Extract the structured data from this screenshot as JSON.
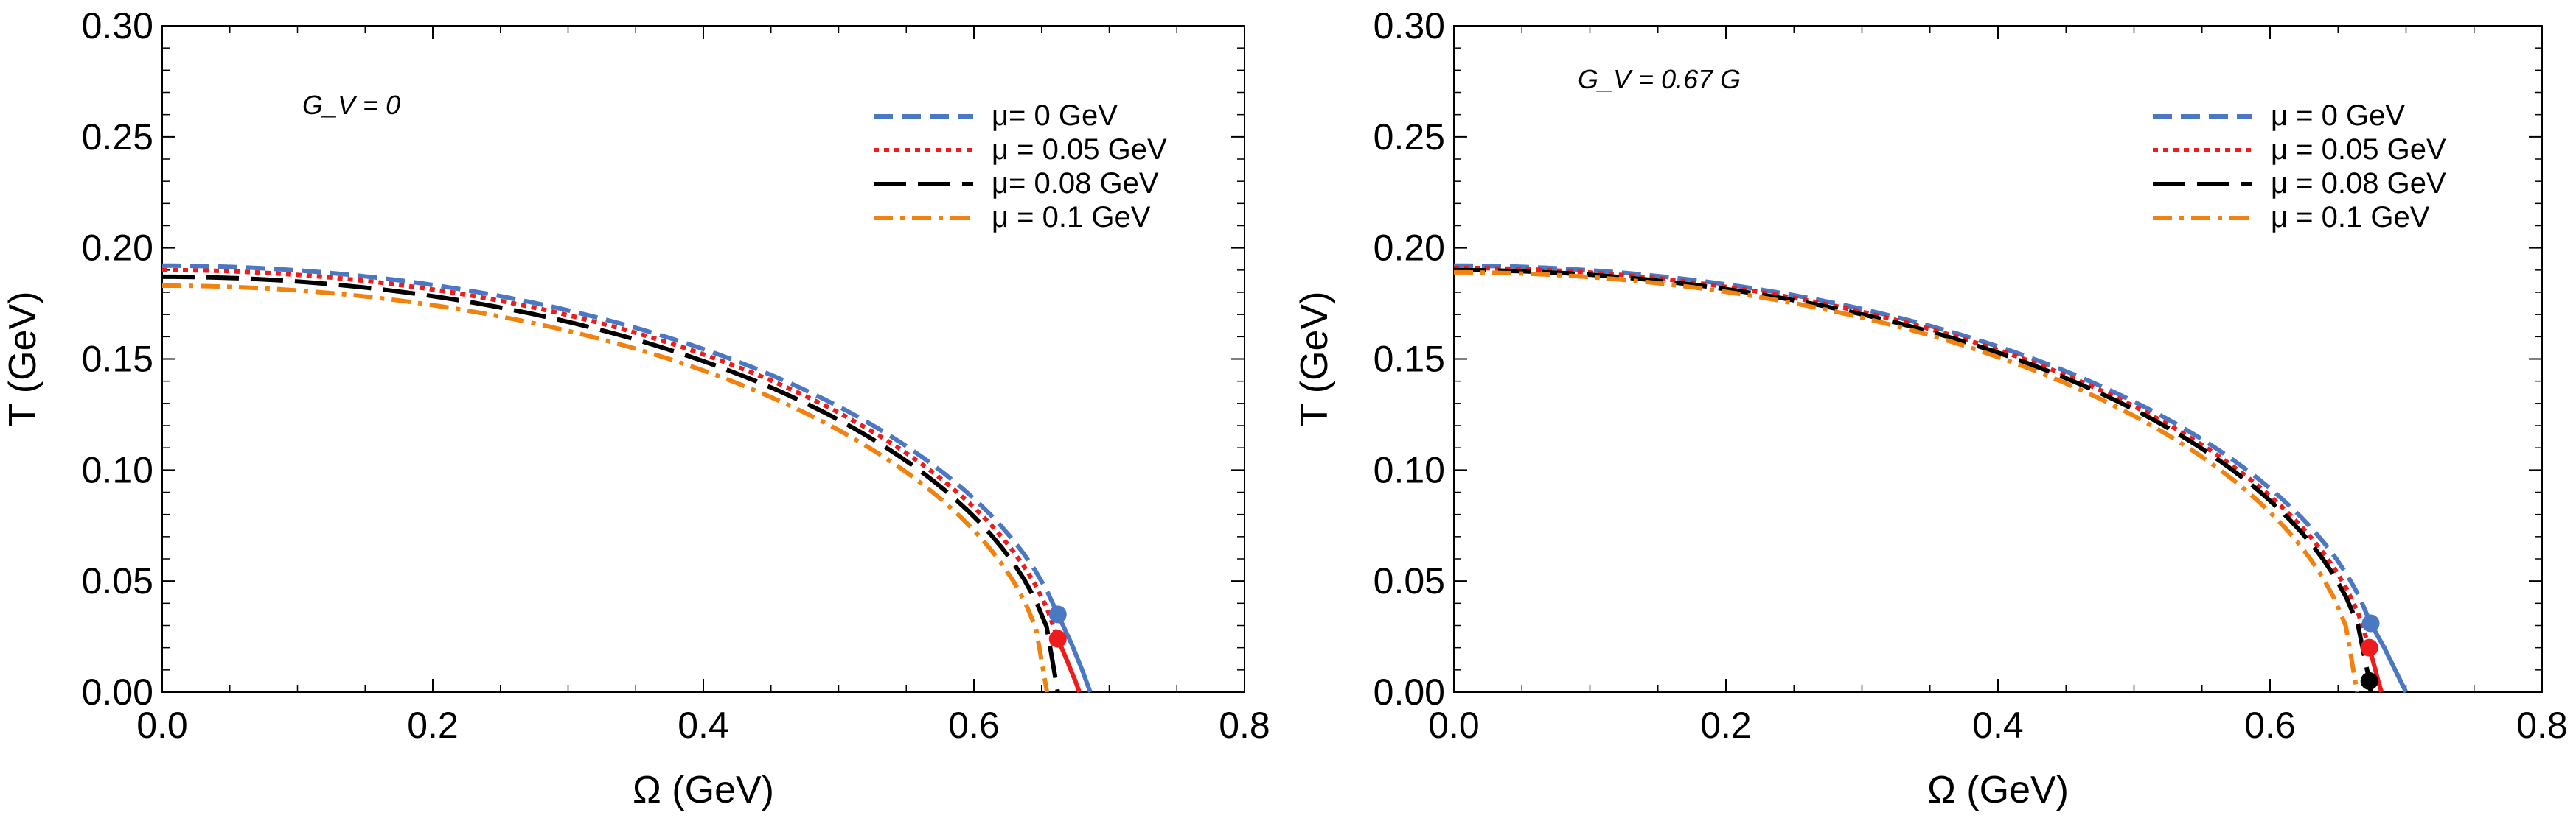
{
  "colors": {
    "mu0": "#4a78c2",
    "mu005": "#ee1c1c",
    "mu008": "#000000",
    "mu01": "#f2820f",
    "frame": "#000000"
  },
  "chart_data": [
    {
      "type": "line",
      "annotation": "G_V = 0",
      "xlabel": "Ω (GeV)",
      "ylabel": "T (GeV)",
      "xlim": [
        0,
        0.8
      ],
      "ylim": [
        0,
        0.3
      ],
      "xticks": [
        "0.0",
        "0.2",
        "0.4",
        "0.6",
        "0.8"
      ],
      "yticks": [
        "0.00",
        "0.05",
        "0.10",
        "0.15",
        "0.20",
        "0.25",
        "0.30"
      ],
      "legend_position": "top-right",
      "series": [
        {
          "name": "μ= 0 GeV",
          "style": "dashed",
          "color_key": "mu0",
          "T0": 0.192,
          "omega_end": 0.662,
          "T_end": 0.035,
          "tail": {
            "x": [
              0.662,
              0.672,
              0.68,
              0.686
            ],
            "y": [
              0.035,
              0.022,
              0.01,
              0.0
            ]
          }
        },
        {
          "name": "μ = 0.05 GeV",
          "style": "dotted",
          "color_key": "mu005",
          "T0": 0.19,
          "omega_end": 0.662,
          "T_end": 0.024,
          "tail": {
            "x": [
              0.662,
              0.669,
              0.675,
              0.678
            ],
            "y": [
              0.024,
              0.014,
              0.005,
              0.0
            ]
          }
        },
        {
          "name": "μ= 0.08 GeV",
          "style": "longdash",
          "color_key": "mu008",
          "T0": 0.187,
          "omega_end": 0.662,
          "T_end": 0.0
        },
        {
          "name": "μ = 0.1 GeV",
          "style": "dashdot",
          "color_key": "mu01",
          "T0": 0.183,
          "omega_end": 0.654,
          "T_end": 0.0
        }
      ],
      "points": [
        {
          "x": 0.662,
          "y": 0.035,
          "color_key": "mu0"
        },
        {
          "x": 0.662,
          "y": 0.024,
          "color_key": "mu005"
        }
      ]
    },
    {
      "type": "line",
      "annotation": "G_V = 0.67 G",
      "xlabel": "Ω (GeV)",
      "ylabel": "T (GeV)",
      "xlim": [
        0,
        0.8
      ],
      "ylim": [
        0,
        0.3
      ],
      "xticks": [
        "0.0",
        "0.2",
        "0.4",
        "0.6",
        "0.8"
      ],
      "yticks": [
        "0.00",
        "0.05",
        "0.10",
        "0.15",
        "0.20",
        "0.25",
        "0.30"
      ],
      "legend_position": "top-right",
      "series": [
        {
          "name": "μ = 0 GeV",
          "style": "dashed",
          "color_key": "mu0",
          "T0": 0.192,
          "omega_end": 0.674,
          "T_end": 0.031,
          "tail": {
            "x": [
              0.674,
              0.684,
              0.692,
              0.7
            ],
            "y": [
              0.031,
              0.02,
              0.01,
              0.0
            ]
          }
        },
        {
          "name": "μ = 0.05 GeV",
          "style": "dotted",
          "color_key": "mu005",
          "T0": 0.191,
          "omega_end": 0.673,
          "T_end": 0.02,
          "tail": {
            "x": [
              0.673,
              0.677,
              0.68,
              0.682
            ],
            "y": [
              0.02,
              0.011,
              0.004,
              0.0
            ]
          }
        },
        {
          "name": "μ = 0.08 GeV",
          "style": "longdash",
          "color_key": "mu008",
          "T0": 0.19,
          "omega_end": 0.673,
          "T_end": 0.005,
          "tail": {
            "x": [
              0.673,
              0.674
            ],
            "y": [
              0.005,
              0.0
            ]
          }
        },
        {
          "name": "μ = 0.1 GeV",
          "style": "dashdot",
          "color_key": "mu01",
          "T0": 0.189,
          "omega_end": 0.664,
          "T_end": 0.0
        }
      ],
      "points": [
        {
          "x": 0.674,
          "y": 0.031,
          "color_key": "mu0"
        },
        {
          "x": 0.673,
          "y": 0.02,
          "color_key": "mu005"
        },
        {
          "x": 0.673,
          "y": 0.005,
          "color_key": "mu008"
        }
      ]
    }
  ]
}
